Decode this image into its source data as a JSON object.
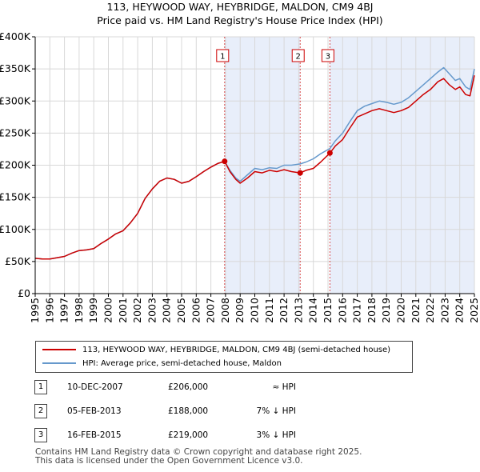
{
  "chart_data": {
    "type": "line",
    "title": "113, HEYWOOD WAY, HEYBRIDGE, MALDON, CM9 4BJ",
    "subtitle": "Price paid vs. HM Land Registry's House Price Index (HPI)",
    "xlabel": "",
    "ylabel": "",
    "xlim": [
      1995,
      2025
    ],
    "ylim": [
      0,
      400000
    ],
    "x_ticks": [
      "1995",
      "1996",
      "1997",
      "1998",
      "1999",
      "2000",
      "2001",
      "2002",
      "2003",
      "2004",
      "2005",
      "2006",
      "2007",
      "2008",
      "2009",
      "2010",
      "2011",
      "2012",
      "2013",
      "2014",
      "2015",
      "2016",
      "2017",
      "2018",
      "2019",
      "2020",
      "2021",
      "2022",
      "2023",
      "2024",
      "2025"
    ],
    "y_ticks": [
      {
        "value": 0,
        "label": "£0"
      },
      {
        "value": 50000,
        "label": "£50K"
      },
      {
        "value": 100000,
        "label": "£100K"
      },
      {
        "value": 150000,
        "label": "£150K"
      },
      {
        "value": 200000,
        "label": "£200K"
      },
      {
        "value": 250000,
        "label": "£250K"
      },
      {
        "value": 300000,
        "label": "£300K"
      },
      {
        "value": 350000,
        "label": "£350K"
      },
      {
        "value": 400000,
        "label": "£400K"
      }
    ],
    "shaded_regions": [
      [
        2007.94,
        2013.1
      ],
      [
        2015.13,
        2025
      ]
    ],
    "series": [
      {
        "name": "113, HEYWOOD WAY, HEYBRIDGE, MALDON, CM9 4BJ (semi-detached house)",
        "color": "#cc0000",
        "x": [
          1995.0,
          1995.5,
          1996.0,
          1996.5,
          1997.0,
          1997.5,
          1998.0,
          1998.5,
          1999.0,
          1999.5,
          2000.0,
          2000.5,
          2001.0,
          2001.5,
          2002.0,
          2002.5,
          2003.0,
          2003.5,
          2004.0,
          2004.5,
          2005.0,
          2005.5,
          2006.0,
          2006.5,
          2007.0,
          2007.5,
          2007.94,
          2008.3,
          2008.7,
          2009.0,
          2009.5,
          2010.0,
          2010.5,
          2011.0,
          2011.5,
          2012.0,
          2012.5,
          2013.1,
          2013.5,
          2014.0,
          2014.5,
          2015.13,
          2015.5,
          2016.0,
          2016.5,
          2017.0,
          2017.5,
          2018.0,
          2018.5,
          2019.0,
          2019.5,
          2020.0,
          2020.5,
          2021.0,
          2021.5,
          2022.0,
          2022.5,
          2022.9,
          2023.3,
          2023.7,
          2024.0,
          2024.4,
          2024.7,
          2025.0
        ],
        "y": [
          55000,
          54000,
          54000,
          56000,
          58000,
          63000,
          67000,
          68000,
          70000,
          78000,
          85000,
          93000,
          98000,
          110000,
          125000,
          148000,
          163000,
          175000,
          180000,
          178000,
          172000,
          175000,
          182000,
          190000,
          197000,
          203000,
          206000,
          190000,
          178000,
          172000,
          180000,
          190000,
          188000,
          192000,
          190000,
          193000,
          190000,
          188000,
          192000,
          195000,
          205000,
          219000,
          230000,
          240000,
          258000,
          275000,
          280000,
          285000,
          288000,
          285000,
          282000,
          285000,
          290000,
          300000,
          310000,
          318000,
          330000,
          335000,
          325000,
          318000,
          322000,
          310000,
          308000,
          340000
        ]
      },
      {
        "name": "HPI: Average price, semi-detached house, Maldon",
        "color": "#6699cc",
        "x": [
          1995.0,
          1995.5,
          1996.0,
          1996.5,
          1997.0,
          1997.5,
          1998.0,
          1998.5,
          1999.0,
          1999.5,
          2000.0,
          2000.5,
          2001.0,
          2001.5,
          2002.0,
          2002.5,
          2003.0,
          2003.5,
          2004.0,
          2004.5,
          2005.0,
          2005.5,
          2006.0,
          2006.5,
          2007.0,
          2007.5,
          2007.94,
          2008.3,
          2008.7,
          2009.0,
          2009.5,
          2010.0,
          2010.5,
          2011.0,
          2011.5,
          2012.0,
          2012.5,
          2013.1,
          2013.5,
          2014.0,
          2014.5,
          2015.13,
          2015.5,
          2016.0,
          2016.5,
          2017.0,
          2017.5,
          2018.0,
          2018.5,
          2019.0,
          2019.5,
          2020.0,
          2020.5,
          2021.0,
          2021.5,
          2022.0,
          2022.5,
          2022.9,
          2023.3,
          2023.7,
          2024.0,
          2024.4,
          2024.7,
          2025.0
        ],
        "y": [
          55000,
          54000,
          54000,
          56000,
          58000,
          63000,
          67000,
          68000,
          70000,
          78000,
          85000,
          93000,
          98000,
          110000,
          125000,
          148000,
          163000,
          175000,
          180000,
          178000,
          172000,
          175000,
          182000,
          190000,
          197000,
          203000,
          206000,
          192000,
          180000,
          175000,
          185000,
          195000,
          193000,
          196000,
          195000,
          200000,
          200000,
          202000,
          205000,
          210000,
          218000,
          226000,
          238000,
          250000,
          268000,
          285000,
          292000,
          296000,
          300000,
          298000,
          295000,
          298000,
          305000,
          315000,
          325000,
          335000,
          345000,
          352000,
          342000,
          332000,
          335000,
          322000,
          318000,
          350000
        ]
      }
    ],
    "sales": [
      {
        "num": "1",
        "x": 2007.94,
        "value": 206000
      },
      {
        "num": "2",
        "x": 2013.1,
        "value": 188000
      },
      {
        "num": "3",
        "x": 2015.13,
        "value": 219000
      }
    ]
  },
  "legend": {
    "property_label": "113, HEYWOOD WAY, HEYBRIDGE, MALDON, CM9 4BJ (semi-detached house)",
    "hpi_label": "HPI: Average price, semi-detached house, Maldon"
  },
  "sales_table": [
    {
      "num": "1",
      "date": "10-DEC-2007",
      "price": "£206,000",
      "relation": "≈ HPI"
    },
    {
      "num": "2",
      "date": "05-FEB-2013",
      "price": "£188,000",
      "relation": "7% ↓ HPI"
    },
    {
      "num": "3",
      "date": "16-FEB-2015",
      "price": "£219,000",
      "relation": "3% ↓ HPI"
    }
  ],
  "footer": {
    "line1": "Contains HM Land Registry data © Crown copyright and database right 2025.",
    "line2": "This data is licensed under the Open Government Licence v3.0."
  },
  "colors": {
    "property": "#cc0000",
    "hpi": "#6699cc",
    "shade": "#e8eefa"
  }
}
